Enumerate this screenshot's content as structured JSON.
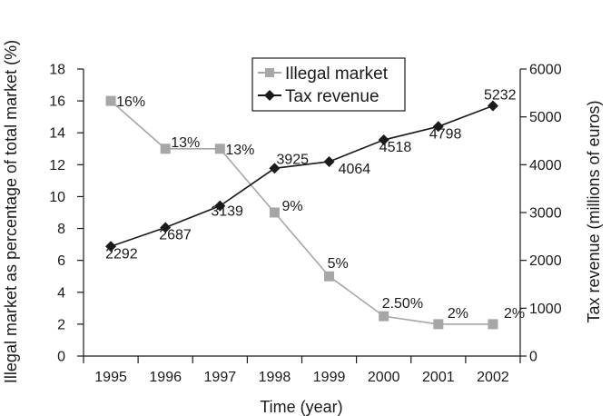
{
  "chart_data": {
    "type": "line",
    "title": "",
    "xlabel": "Time (year)",
    "ylabel_left": "Illegal market as percentage of total market (%)",
    "ylabel_right": "Tax revenue (millions of euros)",
    "categories": [
      "1995",
      "1996",
      "1997",
      "1998",
      "1999",
      "2000",
      "2001",
      "2002"
    ],
    "ylim_left": [
      0,
      18
    ],
    "yticks_left": [
      0,
      2,
      4,
      6,
      8,
      10,
      12,
      14,
      16,
      18
    ],
    "ylim_right": [
      0,
      6000
    ],
    "yticks_right": [
      0,
      1000,
      2000,
      3000,
      4000,
      5000,
      6000
    ],
    "grid": false,
    "legend_position": "top-center",
    "series": [
      {
        "name": "Illegal market",
        "axis": "left",
        "color": "#a6a6a6",
        "marker": "square",
        "values": [
          16,
          13,
          13,
          9,
          5,
          2.5,
          2,
          2
        ],
        "labels": [
          "16%",
          "13%",
          "13%",
          "9%",
          "5%",
          "2.50%",
          "2%",
          "2%"
        ]
      },
      {
        "name": "Tax revenue",
        "axis": "right",
        "color": "#1a1a1a",
        "marker": "diamond",
        "values": [
          2292,
          2687,
          3139,
          3925,
          4064,
          4518,
          4798,
          5232
        ],
        "labels": [
          "2292",
          "2687",
          "3139",
          "3925",
          "4064",
          "4518",
          "4798",
          "5232"
        ]
      }
    ]
  }
}
